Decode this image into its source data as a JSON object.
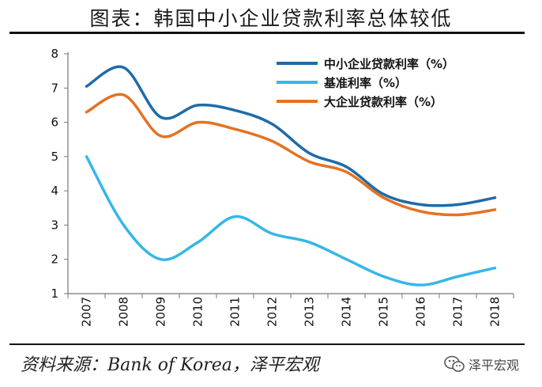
{
  "header": {
    "title": "图表：韩国中小企业贷款利率总体较低"
  },
  "footer": {
    "source": "资料来源：Bank of Korea，泽平宏观",
    "watermark": "泽平宏观"
  },
  "chart_data": {
    "type": "line",
    "title": "图表：韩国中小企业贷款利率总体较低",
    "categories": [
      "2007",
      "2008",
      "2009",
      "2010",
      "2011",
      "2012",
      "2013",
      "2014",
      "2015",
      "2016",
      "2017",
      "2018"
    ],
    "ylim": [
      1,
      8
    ],
    "yticks": [
      1,
      2,
      3,
      4,
      5,
      6,
      7,
      8
    ],
    "grid": false,
    "legend_position": "top-right",
    "series": [
      {
        "name": "中小企业贷款利率（%）",
        "color": "#1f6ba8",
        "values": [
          7.05,
          7.6,
          6.15,
          6.5,
          6.35,
          5.95,
          5.1,
          4.7,
          3.9,
          3.6,
          3.6,
          3.8
        ]
      },
      {
        "name": "基准利率（%）",
        "color": "#36b7e8",
        "values": [
          5.0,
          3.0,
          2.0,
          2.5,
          3.25,
          2.75,
          2.5,
          2.0,
          1.5,
          1.25,
          1.5,
          1.75
        ]
      },
      {
        "name": "大企业贷款利率（%）",
        "color": "#e37322",
        "values": [
          6.3,
          6.8,
          5.6,
          6.0,
          5.8,
          5.45,
          4.85,
          4.55,
          3.8,
          3.4,
          3.3,
          3.45
        ]
      }
    ]
  }
}
